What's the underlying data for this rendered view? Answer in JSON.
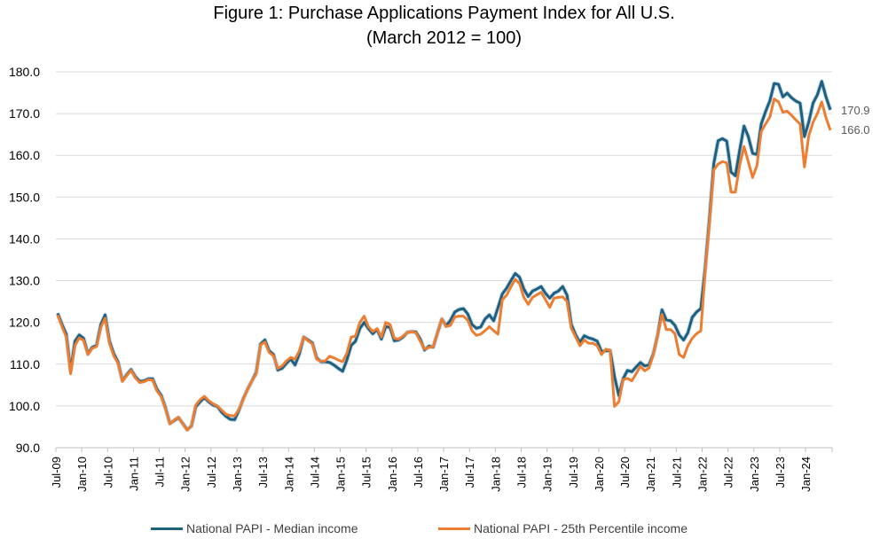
{
  "chart_data": {
    "type": "line",
    "title": "Figure 1: Purchase Applications Payment Index for All U.S.",
    "subtitle": "(March 2012 = 100)",
    "xlabel": "",
    "ylabel": "",
    "ylim": [
      90,
      180
    ],
    "yticks": [
      "90.0",
      "100.0",
      "110.0",
      "120.0",
      "130.0",
      "140.0",
      "150.0",
      "160.0",
      "170.0",
      "180.0"
    ],
    "xticks": [
      "Jul-09",
      "Jan-10",
      "Jul-10",
      "Jan-11",
      "Jul-11",
      "Jan-12",
      "Jul-12",
      "Jan-13",
      "Jul-13",
      "Jan-14",
      "Jul-14",
      "Jan-15",
      "Jul-15",
      "Jan-16",
      "Jul-16",
      "Jan-17",
      "Jul-17",
      "Jan-18",
      "Jul-18",
      "Jan-19",
      "Jul-19",
      "Jan-20",
      "Jul-20",
      "Jan-21",
      "Jul-21",
      "Jan-22",
      "Jul-22",
      "Jan-23",
      "Jul-23",
      "Jan-24"
    ],
    "x_start": "Jul-09",
    "x_frequency": "monthly",
    "grid": true,
    "legend_position": "bottom",
    "end_labels": [
      "170.9",
      "166.0"
    ],
    "series": [
      {
        "name": "National PAPI - Median income",
        "color": "#1F5F80",
        "values": [
          122.2,
          119.5,
          117.2,
          108.5,
          115.5,
          117,
          116.2,
          112.5,
          114,
          114.5,
          119.5,
          121.8,
          115.5,
          112.5,
          110.5,
          106,
          107.5,
          108.7,
          107,
          105.9,
          106,
          106.5,
          106.5,
          104,
          102.5,
          99.5,
          95.8,
          96.5,
          97.2,
          95.8,
          94.3,
          95.2,
          99.8,
          101,
          102,
          101,
          100.2,
          99.9,
          98.5,
          97.5,
          96.8,
          96.7,
          99,
          101.7,
          104,
          106,
          108,
          114.8,
          115.8,
          113.2,
          112.3,
          108.6,
          109,
          110.2,
          111.2,
          109.8,
          112.5,
          116.5,
          115.8,
          115.1,
          111.5,
          110.6,
          110.6,
          110.4,
          109.8,
          109,
          108.3,
          111,
          114.5,
          115.5,
          118.5,
          120,
          118.5,
          117.3,
          118.3,
          116,
          119,
          118.8,
          115.6,
          115.8,
          116.5,
          117.6,
          117.8,
          117.7,
          116,
          113.4,
          114.3,
          114.1,
          117.5,
          120.8,
          119.2,
          120.5,
          122.5,
          123.1,
          123.3,
          122,
          119.5,
          118.6,
          118.9,
          120.8,
          121.8,
          120.4,
          123.5,
          126.8,
          128.2,
          130,
          131.7,
          130.8,
          128,
          126.2,
          127.5,
          128,
          128.6,
          127,
          125.8,
          127,
          127.5,
          128.6,
          126.5,
          119.5,
          117,
          115.2,
          116.8,
          116.3,
          116,
          115.5,
          113,
          113.2,
          113.3,
          107,
          102.5,
          106.5,
          108.5,
          108.2,
          109.3,
          110.4,
          109.6,
          109.8,
          112.5,
          117,
          123,
          120.6,
          120.4,
          119.3,
          117,
          115.8,
          117.5,
          121.2,
          122.5,
          123.3,
          133,
          145,
          158,
          163.5,
          164,
          163.4,
          156,
          155.1,
          161.2,
          167,
          164.5,
          160.5,
          160.2,
          167.5,
          170.5,
          173.1,
          177.2,
          177,
          174,
          174.9,
          173.8,
          173,
          172.5,
          164.5,
          168,
          172.5,
          174.5,
          177.7,
          174,
          170.9
        ]
      },
      {
        "name": "National PAPI - 25th Percentile income",
        "color": "#ED7D31",
        "values": [
          121.8,
          119,
          116.5,
          107.7,
          114.5,
          116.3,
          115.7,
          112.3,
          113.8,
          114.2,
          118.8,
          121,
          115,
          112,
          110.2,
          105.9,
          107.3,
          108.5,
          106.7,
          105.6,
          105.8,
          106.3,
          106.2,
          103.6,
          102.2,
          99.3,
          95.7,
          96.6,
          97.3,
          95.7,
          94.2,
          95.3,
          100.2,
          101.5,
          102.3,
          101.3,
          100.5,
          100,
          99,
          98,
          97.7,
          97.6,
          99.2,
          101.6,
          104,
          106,
          107.7,
          114.6,
          115.3,
          112.8,
          112,
          109,
          109.6,
          110.8,
          111.6,
          111.2,
          113.2,
          116.5,
          115.6,
          114.9,
          111.2,
          110.7,
          110.8,
          111.9,
          111.5,
          111,
          110.6,
          112.6,
          116.5,
          116.7,
          120,
          121.5,
          119,
          117.8,
          118.5,
          116.5,
          120,
          119.5,
          116.2,
          116,
          116.7,
          117.6,
          117.8,
          117.5,
          115.5,
          113.6,
          114,
          114.2,
          117.5,
          120.8,
          119,
          119.3,
          121.3,
          121.5,
          121.5,
          120.5,
          118,
          116.9,
          117.2,
          118,
          119,
          118,
          117.2,
          125.4,
          126.5,
          128.5,
          130.3,
          129.3,
          126,
          124.3,
          126,
          126.6,
          127.2,
          125.5,
          123.6,
          125.8,
          126,
          126.1,
          125,
          118.6,
          116.5,
          114.4,
          115.8,
          115,
          115,
          114.4,
          112.3,
          113.6,
          113.3,
          99.9,
          101,
          106.3,
          106.6,
          106,
          107.7,
          109.5,
          108.4,
          109.1,
          112.3,
          117,
          121.9,
          118.3,
          118.3,
          117.3,
          112.3,
          111.6,
          114.4,
          116.2,
          117.3,
          118,
          132.1,
          144,
          156.5,
          157.9,
          158.5,
          158.2,
          151.2,
          151.2,
          157.6,
          162.1,
          158.5,
          154.7,
          157.6,
          165.7,
          167.5,
          169.2,
          173.5,
          172.8,
          170.3,
          170.6,
          169.6,
          168.5,
          167.5,
          157.2,
          164.7,
          167.9,
          170,
          172.8,
          169,
          166
        ]
      }
    ]
  }
}
